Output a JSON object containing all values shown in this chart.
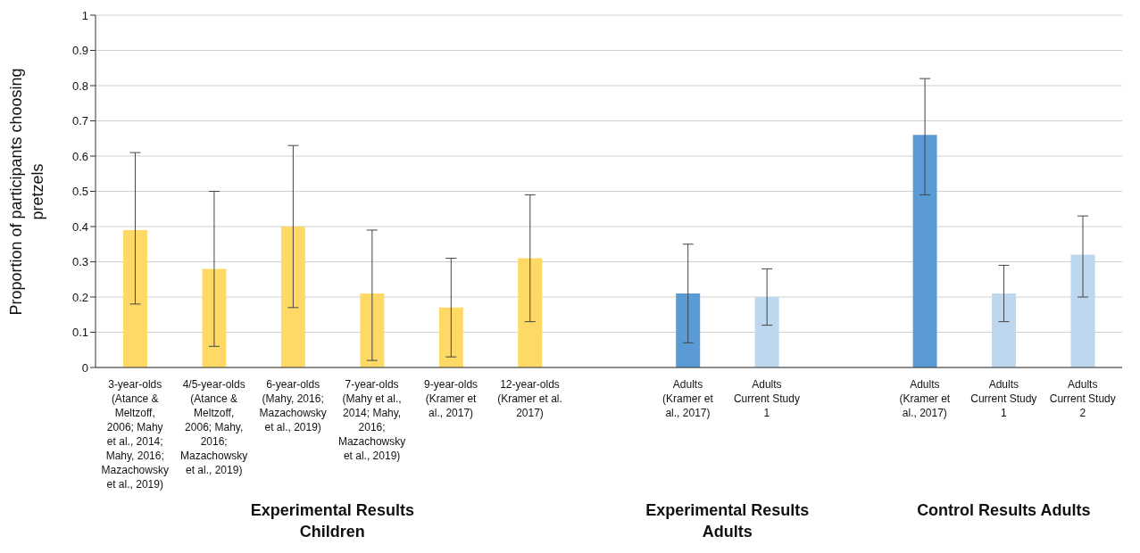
{
  "chart_data": {
    "type": "bar",
    "ylabel": "Proportion of participants choosing pretzels",
    "categories": [
      "3-year-olds (Atance & Meltzoff, 2006; Mahy et al., 2014; Mahy, 2016; Mazachowsky et al., 2019)",
      "4/5-year-olds (Atance & Meltzoff, 2006; Mahy, 2016; Mazachowsky et al., 2019)",
      "6-year-olds (Mahy, 2016; Mazachowsky et al., 2019)",
      "7-year-olds (Mahy et al., 2014; Mahy, 2016; Mazachowsky et al., 2019)",
      "9-year-olds (Kramer et al., 2017)",
      "12-year-olds (Kramer et al. 2017)",
      null,
      "Adults (Kramer et al., 2017)",
      "Adults Current Study 1",
      null,
      "Adults (Kramer et al., 2017)",
      "Adults Current Study 1",
      "Adults Current Study 2"
    ],
    "values": [
      0.39,
      0.28,
      0.4,
      0.21,
      0.17,
      0.31,
      null,
      0.21,
      0.2,
      null,
      0.66,
      0.21,
      0.32
    ],
    "colors": [
      "#ffd966",
      "#ffd966",
      "#ffd966",
      "#ffd966",
      "#ffd966",
      "#ffd966",
      null,
      "#5b9bd5",
      "#bdd7ee",
      null,
      "#5b9bd5",
      "#bdd7ee",
      "#bdd7ee"
    ],
    "errors": [
      [
        0.18,
        0.61
      ],
      [
        0.06,
        0.5
      ],
      [
        0.17,
        0.63
      ],
      [
        0.02,
        0.39
      ],
      [
        0.03,
        0.31
      ],
      [
        0.13,
        0.49
      ],
      null,
      [
        0.07,
        0.35
      ],
      [
        0.12,
        0.28
      ],
      null,
      [
        0.49,
        0.82
      ],
      [
        0.13,
        0.29
      ],
      [
        0.2,
        0.43
      ]
    ],
    "ylim": [
      0,
      1
    ],
    "yticks": [
      0,
      0.1,
      0.2,
      0.3,
      0.4,
      0.5,
      0.6,
      0.7,
      0.8,
      0.9,
      1
    ],
    "grid": "y",
    "annotations": [
      "Experimental Results Children",
      "Experimental Results Adults",
      "Control Results Adults"
    ]
  }
}
